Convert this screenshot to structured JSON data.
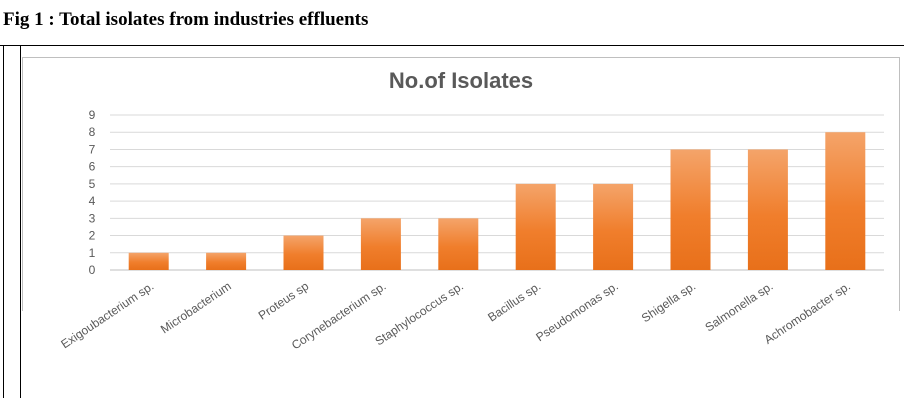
{
  "figure": {
    "caption": "Fig 1 : Total isolates from  industries effluents"
  },
  "chart_data": {
    "type": "bar",
    "title": "No.of Isolates",
    "xlabel": "",
    "ylabel": "",
    "ylim": [
      0,
      9
    ],
    "yticks": [
      "0",
      "1",
      "2",
      "3",
      "4",
      "5",
      "6",
      "7",
      "8",
      "9"
    ],
    "grid": true,
    "legend": "none",
    "categories": [
      "Exigoubacterium sp.",
      "Microbacterium",
      "Proteus sp",
      "Corynebacterium sp.",
      "Staphylococcus sp.",
      "Bacillus sp.",
      "Pseudomonas sp.",
      "Shigella sp.",
      "Salmonella sp.",
      "Achromobacter sp."
    ],
    "values": [
      1,
      1,
      2,
      3,
      3,
      5,
      5,
      7,
      7,
      8
    ],
    "colors": {
      "bar_top": "#f4a46a",
      "bar_mid": "#f07e2c",
      "bar_bottom": "#e8701a",
      "grid": "#d9d9d9",
      "text": "#595959"
    }
  }
}
